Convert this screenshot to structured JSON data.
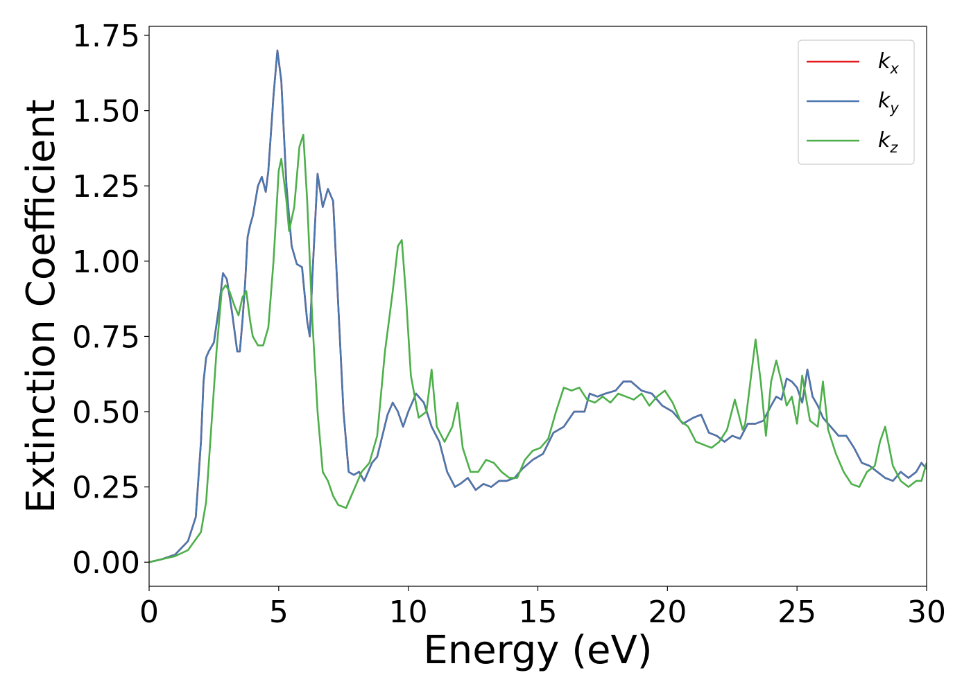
{
  "chart_data": {
    "type": "line",
    "title": "",
    "xlabel": "Energy (eV)",
    "ylabel": "Extinction Coefficient",
    "xlim": [
      0,
      30
    ],
    "ylim": [
      -0.08,
      1.78
    ],
    "xticks": [
      0,
      5,
      10,
      15,
      20,
      25,
      30
    ],
    "xtick_labels": [
      "0",
      "5",
      "10",
      "15",
      "20",
      "25",
      "30"
    ],
    "yticks": [
      0.0,
      0.25,
      0.5,
      0.75,
      1.0,
      1.25,
      1.5,
      1.75
    ],
    "ytick_labels": [
      "0.00",
      "0.25",
      "0.50",
      "0.75",
      "1.00",
      "1.25",
      "1.50",
      "1.75"
    ],
    "grid": false,
    "legend_position": "top-right",
    "series": [
      {
        "name": "k_x",
        "legend_base": "k",
        "legend_sub": "x",
        "color": "#e41a1c",
        "x": [
          0,
          0.5,
          1,
          1.5,
          1.8,
          2.0,
          2.1,
          2.2,
          2.3,
          2.5,
          2.7,
          2.85,
          3.0,
          3.2,
          3.4,
          3.5,
          3.6,
          3.7,
          3.8,
          3.9,
          4.0,
          4.2,
          4.35,
          4.5,
          4.6,
          4.8,
          4.95,
          5.1,
          5.3,
          5.5,
          5.7,
          5.9,
          6.1,
          6.2,
          6.3,
          6.5,
          6.7,
          6.9,
          7.1,
          7.3,
          7.5,
          7.7,
          7.9,
          8.1,
          8.3,
          8.6,
          8.8,
          9.0,
          9.2,
          9.4,
          9.6,
          9.8,
          10.0,
          10.3,
          10.6,
          10.9,
          11.2,
          11.5,
          11.8,
          12.0,
          12.3,
          12.6,
          12.9,
          13.2,
          13.5,
          13.8,
          14.1,
          14.4,
          14.8,
          15.2,
          15.6,
          16.0,
          16.4,
          16.8,
          17.0,
          17.3,
          17.6,
          18.0,
          18.3,
          18.6,
          19.0,
          19.4,
          19.8,
          20.2,
          20.6,
          21.0,
          21.3,
          21.6,
          21.9,
          22.2,
          22.5,
          22.8,
          23.1,
          23.4,
          23.7,
          24.0,
          24.2,
          24.4,
          24.6,
          24.8,
          25.0,
          25.2,
          25.4,
          25.6,
          25.8,
          26.0,
          26.3,
          26.6,
          26.9,
          27.2,
          27.5,
          27.8,
          28.1,
          28.4,
          28.7,
          29.0,
          29.3,
          29.6,
          29.8,
          30.0
        ],
        "y": [
          0,
          0.01,
          0.025,
          0.07,
          0.15,
          0.4,
          0.6,
          0.68,
          0.7,
          0.73,
          0.85,
          0.96,
          0.94,
          0.83,
          0.7,
          0.7,
          0.8,
          0.92,
          1.08,
          1.12,
          1.15,
          1.25,
          1.28,
          1.23,
          1.3,
          1.55,
          1.7,
          1.6,
          1.25,
          1.05,
          0.99,
          0.98,
          0.8,
          0.75,
          0.95,
          1.29,
          1.18,
          1.24,
          1.2,
          0.85,
          0.5,
          0.3,
          0.29,
          0.3,
          0.27,
          0.33,
          0.35,
          0.42,
          0.49,
          0.53,
          0.5,
          0.45,
          0.5,
          0.56,
          0.53,
          0.45,
          0.4,
          0.3,
          0.25,
          0.26,
          0.28,
          0.24,
          0.26,
          0.25,
          0.27,
          0.27,
          0.28,
          0.31,
          0.34,
          0.36,
          0.43,
          0.45,
          0.5,
          0.5,
          0.56,
          0.55,
          0.56,
          0.57,
          0.6,
          0.6,
          0.57,
          0.56,
          0.52,
          0.5,
          0.46,
          0.48,
          0.49,
          0.43,
          0.42,
          0.4,
          0.42,
          0.41,
          0.46,
          0.46,
          0.47,
          0.52,
          0.55,
          0.54,
          0.61,
          0.6,
          0.58,
          0.53,
          0.64,
          0.55,
          0.52,
          0.48,
          0.45,
          0.42,
          0.42,
          0.38,
          0.33,
          0.32,
          0.3,
          0.28,
          0.27,
          0.3,
          0.28,
          0.3,
          0.33,
          0.31
        ]
      },
      {
        "name": "k_y",
        "legend_base": "k",
        "legend_sub": "y",
        "color": "#4a77ad",
        "x": [
          0,
          0.5,
          1,
          1.5,
          1.8,
          2.0,
          2.1,
          2.2,
          2.3,
          2.5,
          2.7,
          2.85,
          3.0,
          3.2,
          3.4,
          3.5,
          3.6,
          3.7,
          3.8,
          3.9,
          4.0,
          4.2,
          4.35,
          4.5,
          4.6,
          4.8,
          4.95,
          5.1,
          5.3,
          5.5,
          5.7,
          5.9,
          6.1,
          6.2,
          6.3,
          6.5,
          6.7,
          6.9,
          7.1,
          7.3,
          7.5,
          7.7,
          7.9,
          8.1,
          8.3,
          8.6,
          8.8,
          9.0,
          9.2,
          9.4,
          9.6,
          9.8,
          10.0,
          10.3,
          10.6,
          10.9,
          11.2,
          11.5,
          11.8,
          12.0,
          12.3,
          12.6,
          12.9,
          13.2,
          13.5,
          13.8,
          14.1,
          14.4,
          14.8,
          15.2,
          15.6,
          16.0,
          16.4,
          16.8,
          17.0,
          17.3,
          17.6,
          18.0,
          18.3,
          18.6,
          19.0,
          19.4,
          19.8,
          20.2,
          20.6,
          21.0,
          21.3,
          21.6,
          21.9,
          22.2,
          22.5,
          22.8,
          23.1,
          23.4,
          23.7,
          24.0,
          24.2,
          24.4,
          24.6,
          24.8,
          25.0,
          25.2,
          25.4,
          25.6,
          25.8,
          26.0,
          26.3,
          26.6,
          26.9,
          27.2,
          27.5,
          27.8,
          28.1,
          28.4,
          28.7,
          29.0,
          29.3,
          29.6,
          29.8,
          30.0
        ],
        "y": [
          0,
          0.01,
          0.025,
          0.07,
          0.15,
          0.4,
          0.6,
          0.68,
          0.7,
          0.73,
          0.85,
          0.96,
          0.94,
          0.83,
          0.7,
          0.7,
          0.8,
          0.92,
          1.08,
          1.12,
          1.15,
          1.25,
          1.28,
          1.23,
          1.3,
          1.55,
          1.7,
          1.6,
          1.25,
          1.05,
          0.99,
          0.98,
          0.8,
          0.75,
          0.95,
          1.29,
          1.18,
          1.24,
          1.2,
          0.85,
          0.5,
          0.3,
          0.29,
          0.3,
          0.27,
          0.33,
          0.35,
          0.42,
          0.49,
          0.53,
          0.5,
          0.45,
          0.5,
          0.56,
          0.53,
          0.45,
          0.4,
          0.3,
          0.25,
          0.26,
          0.28,
          0.24,
          0.26,
          0.25,
          0.27,
          0.27,
          0.28,
          0.31,
          0.34,
          0.36,
          0.43,
          0.45,
          0.5,
          0.5,
          0.56,
          0.55,
          0.56,
          0.57,
          0.6,
          0.6,
          0.57,
          0.56,
          0.52,
          0.5,
          0.46,
          0.48,
          0.49,
          0.43,
          0.42,
          0.4,
          0.42,
          0.41,
          0.46,
          0.46,
          0.47,
          0.52,
          0.55,
          0.54,
          0.61,
          0.6,
          0.58,
          0.53,
          0.64,
          0.55,
          0.52,
          0.48,
          0.45,
          0.42,
          0.42,
          0.38,
          0.33,
          0.32,
          0.3,
          0.28,
          0.27,
          0.3,
          0.28,
          0.3,
          0.33,
          0.31
        ]
      },
      {
        "name": "k_z",
        "legend_base": "k",
        "legend_sub": "z",
        "color": "#4daf4a",
        "x": [
          0,
          0.5,
          1,
          1.5,
          2.0,
          2.2,
          2.4,
          2.6,
          2.8,
          2.95,
          3.1,
          3.3,
          3.45,
          3.6,
          3.75,
          3.9,
          4.0,
          4.2,
          4.4,
          4.6,
          4.8,
          5.0,
          5.1,
          5.3,
          5.4,
          5.6,
          5.8,
          5.95,
          6.1,
          6.3,
          6.5,
          6.7,
          6.9,
          7.1,
          7.3,
          7.6,
          7.9,
          8.2,
          8.5,
          8.8,
          9.1,
          9.4,
          9.6,
          9.75,
          9.9,
          10.1,
          10.4,
          10.7,
          10.9,
          11.1,
          11.4,
          11.7,
          11.9,
          12.1,
          12.4,
          12.7,
          13.0,
          13.3,
          13.6,
          13.9,
          14.2,
          14.5,
          14.8,
          15.1,
          15.4,
          15.7,
          16.0,
          16.3,
          16.6,
          16.9,
          17.2,
          17.5,
          17.8,
          18.1,
          18.4,
          18.7,
          19.0,
          19.3,
          19.6,
          19.9,
          20.2,
          20.5,
          20.8,
          21.1,
          21.4,
          21.7,
          22.0,
          22.3,
          22.6,
          22.9,
          23.0,
          23.2,
          23.4,
          23.6,
          23.8,
          24.0,
          24.2,
          24.4,
          24.6,
          24.8,
          25.0,
          25.2,
          25.5,
          25.8,
          26.0,
          26.2,
          26.5,
          26.8,
          27.1,
          27.4,
          27.7,
          28.0,
          28.2,
          28.4,
          28.7,
          29.0,
          29.3,
          29.6,
          29.8,
          30.0
        ],
        "y": [
          0,
          0.01,
          0.02,
          0.04,
          0.1,
          0.2,
          0.45,
          0.7,
          0.9,
          0.92,
          0.9,
          0.85,
          0.82,
          0.88,
          0.9,
          0.8,
          0.75,
          0.72,
          0.72,
          0.78,
          1.0,
          1.3,
          1.34,
          1.2,
          1.1,
          1.18,
          1.38,
          1.42,
          1.2,
          0.8,
          0.5,
          0.3,
          0.27,
          0.22,
          0.19,
          0.18,
          0.24,
          0.3,
          0.33,
          0.42,
          0.7,
          0.9,
          1.05,
          1.07,
          0.9,
          0.62,
          0.48,
          0.5,
          0.64,
          0.45,
          0.4,
          0.45,
          0.53,
          0.38,
          0.3,
          0.3,
          0.34,
          0.33,
          0.3,
          0.28,
          0.28,
          0.34,
          0.37,
          0.38,
          0.41,
          0.5,
          0.58,
          0.57,
          0.58,
          0.54,
          0.53,
          0.55,
          0.53,
          0.56,
          0.55,
          0.54,
          0.56,
          0.52,
          0.55,
          0.57,
          0.53,
          0.47,
          0.45,
          0.4,
          0.39,
          0.38,
          0.4,
          0.44,
          0.54,
          0.44,
          0.46,
          0.6,
          0.74,
          0.6,
          0.42,
          0.6,
          0.67,
          0.6,
          0.52,
          0.55,
          0.46,
          0.62,
          0.47,
          0.45,
          0.6,
          0.44,
          0.36,
          0.3,
          0.26,
          0.25,
          0.3,
          0.32,
          0.4,
          0.45,
          0.32,
          0.27,
          0.25,
          0.27,
          0.27,
          0.33
        ]
      }
    ]
  }
}
